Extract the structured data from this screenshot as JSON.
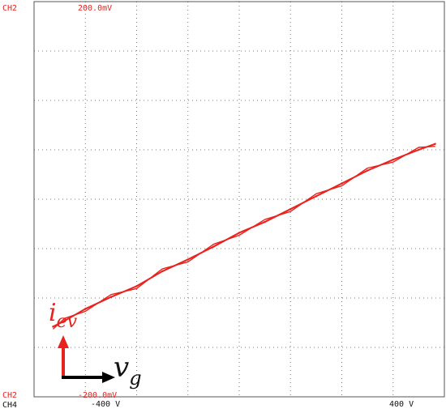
{
  "scope": {
    "ch2_top_label": "CH2",
    "ch2_bottom_label": "CH2",
    "ch4_label": "CH4",
    "y_top_value": "200.0mV",
    "y_bottom_value": "-200.0mV",
    "x_left_value": "-400 V",
    "x_right_value": "400 V"
  },
  "colors": {
    "trace": "#e8231f",
    "grid": "#7a7a7a",
    "frame": "#555555",
    "label_red": "#e8231f",
    "label_black": "#111111",
    "arrow_red": "#e8231f",
    "arrow_black": "#000000"
  },
  "chart_data": {
    "type": "scatter",
    "mode": "xy",
    "grid": true,
    "x_divisions": 8,
    "y_divisions": 8,
    "xlim": [
      -400,
      400
    ],
    "ylim": [
      -200,
      200
    ],
    "x_unit": "V",
    "y_unit": "mV",
    "series": [
      {
        "color": "#e8231f",
        "x": [
          -363,
          -340,
          -300,
          -250,
          -200,
          -150,
          -100,
          -50,
          0,
          50,
          100,
          150,
          200,
          250,
          300,
          350,
          382
        ],
        "y": [
          -129,
          -123,
          -111,
          -99,
          -88,
          -73,
          -61,
          -48,
          -34,
          -23,
          -10,
          3,
          16,
          29,
          40,
          50,
          56
        ]
      }
    ],
    "annotations": [
      {
        "text": "i",
        "subscript": "ev",
        "color": "#e8231f",
        "axis": "y"
      },
      {
        "text": "v",
        "subscript": "g",
        "color": "#111111",
        "axis": "x"
      }
    ]
  }
}
